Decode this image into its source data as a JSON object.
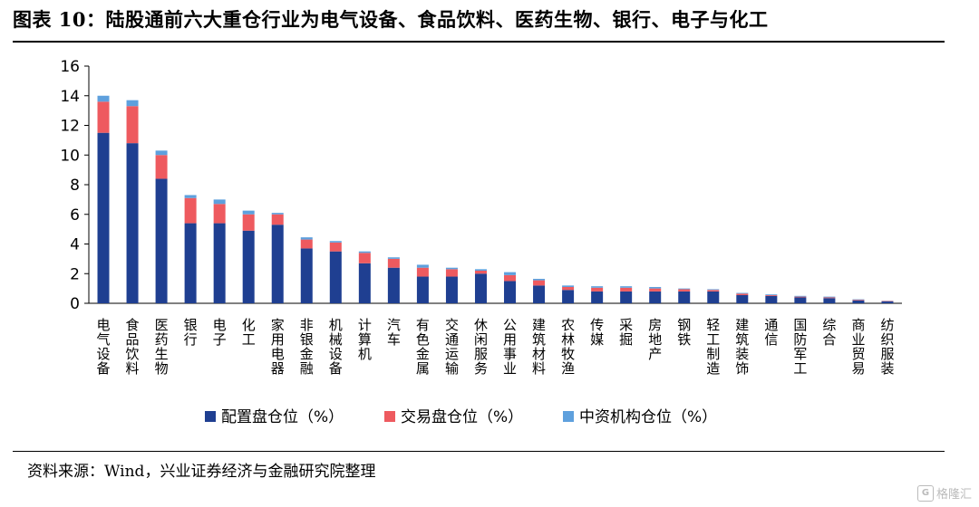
{
  "title": "图表 10：陆股通前六大重仓行业为电气设备、食品饮料、医药生物、银行、电子与化工",
  "source": "资料来源：Wind，兴业证券经济与金融研究院整理",
  "watermark": "格隆汇",
  "colors": {
    "s1": "#1f3f91",
    "s2": "#ee5a5f",
    "s3": "#5ea0dd"
  },
  "chart_data": {
    "type": "bar",
    "stacked": true,
    "ylim": [
      0,
      16
    ],
    "yticks": [
      0,
      2,
      4,
      6,
      8,
      10,
      12,
      14,
      16
    ],
    "categories": [
      "电气设备",
      "食品饮料",
      "医药生物",
      "银行",
      "电子",
      "化工",
      "家用电器",
      "非银金融",
      "机械设备",
      "计算机",
      "汽车",
      "有色金属",
      "交通运输",
      "休闲服务",
      "公用事业",
      "建筑材料",
      "农林牧渔",
      "传媒",
      "采掘",
      "房地产",
      "钢铁",
      "轻工制造",
      "建筑装饰",
      "通信",
      "国防军工",
      "综合",
      "商业贸易",
      "纺织服装"
    ],
    "series": [
      {
        "name": "配置盘仓位（%）",
        "values": [
          11.5,
          10.8,
          8.4,
          5.4,
          5.4,
          4.9,
          5.3,
          3.7,
          3.5,
          2.7,
          2.4,
          1.8,
          1.8,
          2.0,
          1.5,
          1.2,
          0.9,
          0.8,
          0.8,
          0.8,
          0.8,
          0.8,
          0.55,
          0.5,
          0.4,
          0.35,
          0.2,
          0.12
        ]
      },
      {
        "name": "交易盘仓位（%）",
        "values": [
          2.1,
          2.5,
          1.6,
          1.7,
          1.3,
          1.1,
          0.7,
          0.6,
          0.6,
          0.7,
          0.6,
          0.6,
          0.5,
          0.2,
          0.4,
          0.35,
          0.2,
          0.25,
          0.25,
          0.2,
          0.15,
          0.1,
          0.1,
          0.05,
          0.05,
          0.05,
          0.04,
          0.03
        ]
      },
      {
        "name": "中资机构仓位（%）",
        "values": [
          0.4,
          0.4,
          0.3,
          0.2,
          0.3,
          0.25,
          0.1,
          0.15,
          0.1,
          0.1,
          0.1,
          0.2,
          0.1,
          0.1,
          0.2,
          0.1,
          0.1,
          0.1,
          0.1,
          0.1,
          0.05,
          0.05,
          0.05,
          0.05,
          0.05,
          0.05,
          0.03,
          0.02
        ]
      }
    ]
  }
}
